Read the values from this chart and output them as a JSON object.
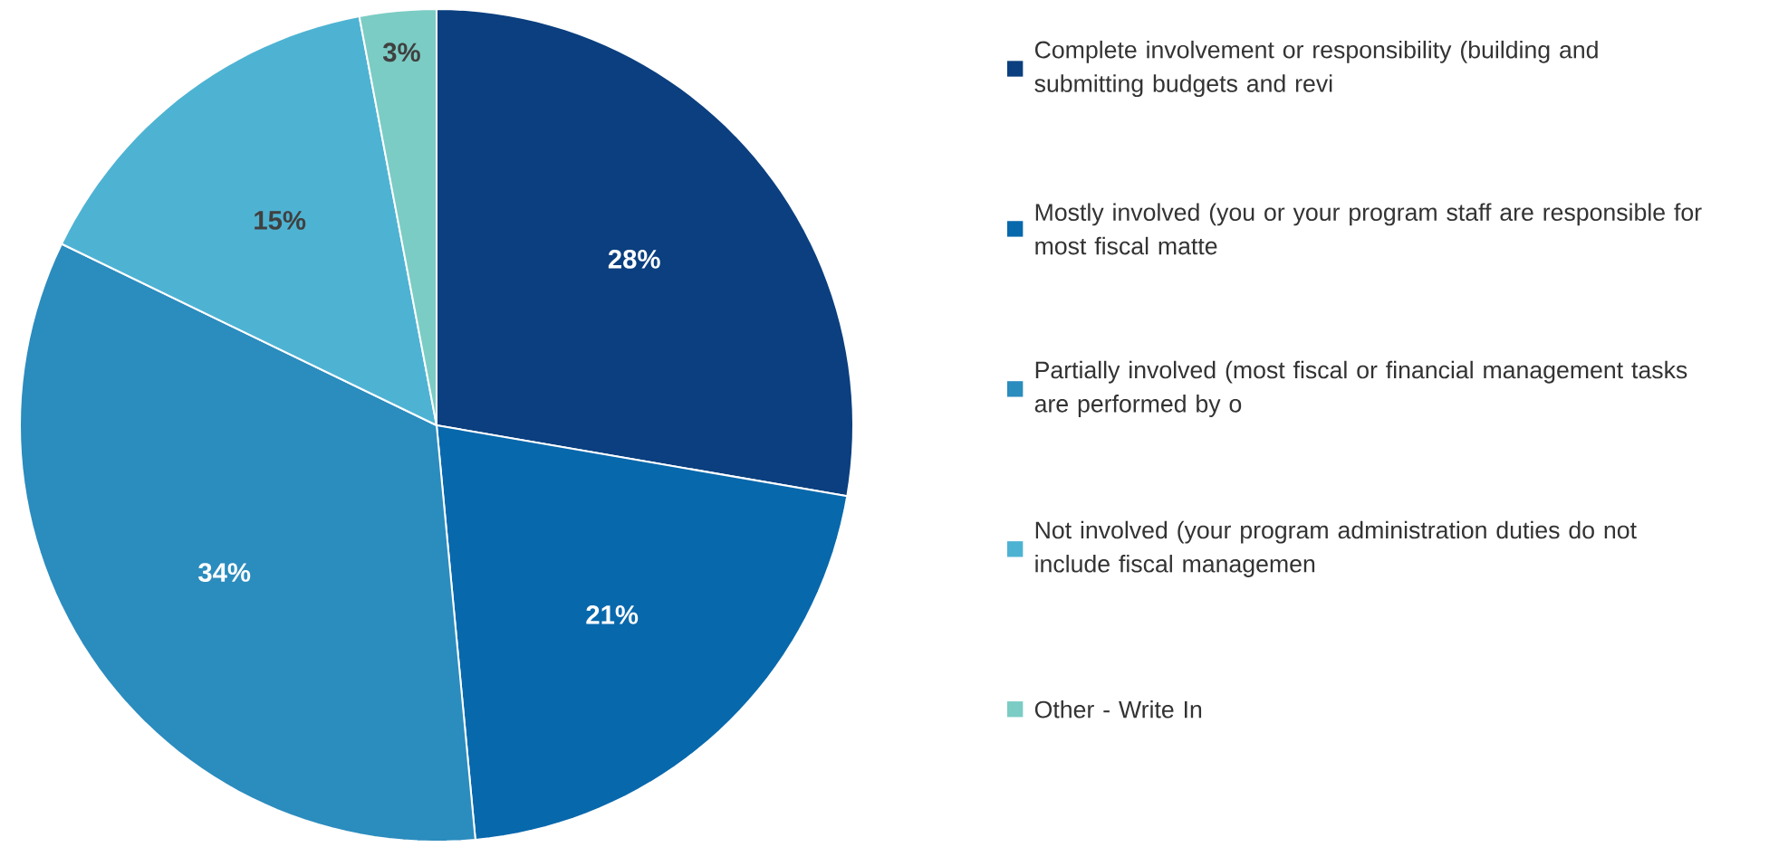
{
  "chart_data": {
    "type": "pie",
    "categories": [
      "Complete involvement or responsibility (building and submitting budgets and revi",
      "Mostly involved (you or your program staff are responsible for most fiscal matte",
      "Partially involved (most fiscal or financial management tasks are performed by o",
      "Not involved (your program administration duties do not include fiscal managemen",
      "Other - Write In"
    ],
    "values": [
      28,
      21,
      34,
      15,
      3
    ],
    "value_labels": [
      "28%",
      "21%",
      "34%",
      "15%",
      "3%"
    ],
    "colors": [
      "#0b3f7f",
      "#0868ac",
      "#2b8cbe",
      "#4eb3d3",
      "#7bccc4"
    ],
    "legend": "right"
  }
}
